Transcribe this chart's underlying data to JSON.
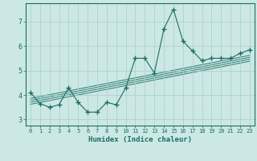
{
  "xlabel": "Humidex (Indice chaleur)",
  "ylabel": "",
  "bg_color": "#cce8e4",
  "grid_color": "#aacec8",
  "line_color": "#1a6e64",
  "marker": "+",
  "marker_size": 4,
  "marker_ew": 1.0,
  "xlim": [
    -0.5,
    23.5
  ],
  "ylim": [
    2.75,
    7.75
  ],
  "xticks": [
    0,
    1,
    2,
    3,
    4,
    5,
    6,
    7,
    8,
    9,
    10,
    11,
    12,
    13,
    14,
    15,
    16,
    17,
    18,
    19,
    20,
    21,
    22,
    23
  ],
  "yticks": [
    3,
    4,
    5,
    6,
    7
  ],
  "main_x": [
    0,
    1,
    2,
    3,
    4,
    5,
    6,
    7,
    8,
    9,
    10,
    11,
    12,
    13,
    14,
    15,
    16,
    17,
    18,
    19,
    20,
    21,
    22,
    23
  ],
  "main_y": [
    4.1,
    3.65,
    3.5,
    3.6,
    4.3,
    3.7,
    3.3,
    3.3,
    3.7,
    3.6,
    4.3,
    5.5,
    5.5,
    4.9,
    6.7,
    7.5,
    6.2,
    5.8,
    5.4,
    5.5,
    5.5,
    5.5,
    5.7,
    5.85
  ],
  "band_lines": [
    [
      3.62,
      5.38
    ],
    [
      3.7,
      5.46
    ],
    [
      3.78,
      5.54
    ],
    [
      3.86,
      5.62
    ]
  ],
  "tick_fontsize": 5.0,
  "xlabel_fontsize": 6.5,
  "xlabel_fontweight": "bold"
}
